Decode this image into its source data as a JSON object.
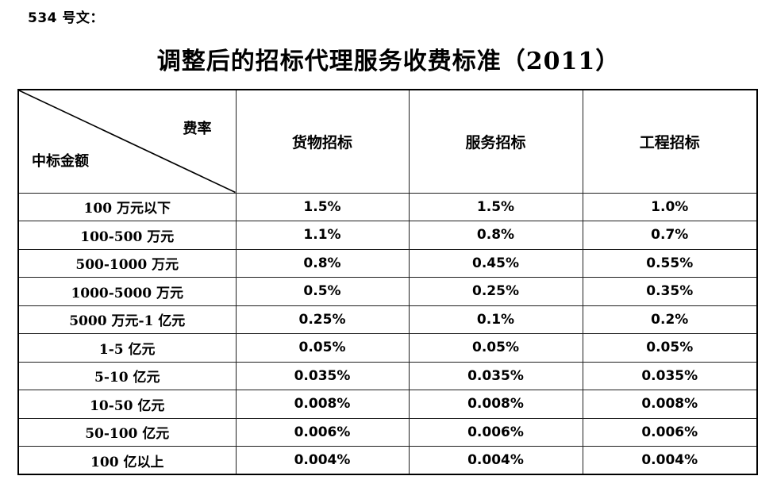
{
  "page": {
    "doc_label": "534 号文：",
    "title": "调整后的招标代理服务收费标准（2011）"
  },
  "table": {
    "corner": {
      "top_right": "费率",
      "bottom_left": "中标金额"
    },
    "columns": [
      "货物招标",
      "服务招标",
      "工程招标"
    ],
    "rows": [
      {
        "label": "100 万元以下",
        "values": [
          "1.5%",
          "1.5%",
          "1.0%"
        ]
      },
      {
        "label": "100-500 万元",
        "values": [
          "1.1%",
          "0.8%",
          "0.7%"
        ]
      },
      {
        "label": "500-1000 万元",
        "values": [
          "0.8%",
          "0.45%",
          "0.55%"
        ]
      },
      {
        "label": "1000-5000 万元",
        "values": [
          "0.5%",
          "0.25%",
          "0.35%"
        ]
      },
      {
        "label": "5000 万元-1 亿元",
        "values": [
          "0.25%",
          "0.1%",
          "0.2%"
        ]
      },
      {
        "label": "1-5 亿元",
        "values": [
          "0.05%",
          "0.05%",
          "0.05%"
        ]
      },
      {
        "label": "5-10 亿元",
        "values": [
          "0.035%",
          "0.035%",
          "0.035%"
        ]
      },
      {
        "label": "10-50 亿元",
        "values": [
          "0.008%",
          "0.008%",
          "0.008%"
        ]
      },
      {
        "label": "50-100 亿元",
        "values": [
          "0.006%",
          "0.006%",
          "0.006%"
        ]
      },
      {
        "label": "100 亿以上",
        "values": [
          "0.004%",
          "0.004%",
          "0.004%"
        ]
      }
    ]
  },
  "colors": {
    "text": "#000000",
    "background": "#ffffff",
    "border": "#1f1f1f"
  }
}
